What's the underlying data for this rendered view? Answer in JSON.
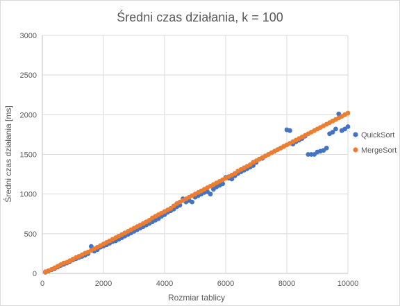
{
  "chart_data": {
    "type": "scatter",
    "title": "Średni czas działania, k = 100",
    "xlabel": "Rozmiar tablicy",
    "ylabel": "Średni czas działania [ms]",
    "xlim": [
      0,
      10000
    ],
    "ylim": [
      0,
      3000
    ],
    "x_ticks": [
      0,
      2000,
      4000,
      6000,
      8000,
      10000
    ],
    "y_ticks": [
      0,
      500,
      1000,
      1500,
      2000,
      2500,
      3000
    ],
    "grid": true,
    "legend_position": "right",
    "series": [
      {
        "name": "QuickSort",
        "color": "#4472c4",
        "x": [
          100,
          200,
          300,
          400,
          500,
          600,
          700,
          800,
          900,
          1000,
          1100,
          1200,
          1300,
          1400,
          1500,
          1600,
          1700,
          1800,
          1900,
          2000,
          2100,
          2200,
          2300,
          2400,
          2500,
          2600,
          2700,
          2800,
          2900,
          3000,
          3100,
          3200,
          3300,
          3400,
          3500,
          3600,
          3700,
          3800,
          3900,
          4000,
          4100,
          4200,
          4300,
          4400,
          4500,
          4600,
          4700,
          4800,
          4900,
          5000,
          5100,
          5200,
          5300,
          5400,
          5500,
          5600,
          5700,
          5800,
          5900,
          6000,
          6100,
          6200,
          6300,
          6400,
          6500,
          6600,
          6700,
          6800,
          6900,
          7000,
          7100,
          7200,
          7300,
          7400,
          7500,
          7600,
          7700,
          7800,
          7900,
          8000,
          8100,
          8200,
          8300,
          8400,
          8500,
          8600,
          8700,
          8800,
          8900,
          9000,
          9100,
          9200,
          9300,
          9400,
          9500,
          9600,
          9700,
          9800,
          9900,
          10000
        ],
        "values": [
          15,
          30,
          45,
          60,
          80,
          100,
          115,
          130,
          150,
          170,
          185,
          200,
          215,
          230,
          250,
          340,
          280,
          300,
          330,
          345,
          360,
          380,
          400,
          410,
          430,
          450,
          470,
          490,
          510,
          530,
          550,
          570,
          590,
          610,
          630,
          650,
          670,
          690,
          720,
          740,
          770,
          790,
          810,
          840,
          860,
          940,
          900,
          920,
          900,
          960,
          980,
          1000,
          1020,
          1030,
          1000,
          1060,
          1090,
          1110,
          1130,
          1210,
          1200,
          1190,
          1230,
          1260,
          1280,
          1300,
          1320,
          1340,
          1360,
          1400,
          1440,
          1450,
          1480,
          1500,
          1520,
          1540,
          1560,
          1580,
          1600,
          1810,
          1800,
          1630,
          1660,
          1680,
          1700,
          1730,
          1500,
          1500,
          1500,
          1530,
          1540,
          1550,
          1580,
          1760,
          1780,
          1820,
          2010,
          1800,
          1820,
          1850
        ]
      },
      {
        "name": "MergeSort",
        "color": "#ed7d31",
        "x": [
          100,
          200,
          300,
          400,
          500,
          600,
          700,
          800,
          900,
          1000,
          1100,
          1200,
          1300,
          1400,
          1500,
          1600,
          1700,
          1800,
          1900,
          2000,
          2100,
          2200,
          2300,
          2400,
          2500,
          2600,
          2700,
          2800,
          2900,
          3000,
          3100,
          3200,
          3300,
          3400,
          3500,
          3600,
          3700,
          3800,
          3900,
          4000,
          4100,
          4200,
          4300,
          4400,
          4500,
          4600,
          4700,
          4800,
          4900,
          5000,
          5100,
          5200,
          5300,
          5400,
          5500,
          5600,
          5700,
          5800,
          5900,
          6000,
          6100,
          6200,
          6300,
          6400,
          6500,
          6600,
          6700,
          6800,
          6900,
          7000,
          7100,
          7200,
          7300,
          7400,
          7500,
          7600,
          7700,
          7800,
          7900,
          8000,
          8100,
          8200,
          8300,
          8400,
          8500,
          8600,
          8700,
          8800,
          8900,
          9000,
          9100,
          9200,
          9300,
          9400,
          9500,
          9600,
          9700,
          9800,
          9900,
          10000
        ],
        "values": [
          20,
          35,
          50,
          70,
          90,
          110,
          130,
          140,
          160,
          180,
          200,
          215,
          235,
          255,
          270,
          290,
          310,
          330,
          350,
          370,
          390,
          410,
          430,
          450,
          470,
          490,
          510,
          530,
          550,
          570,
          590,
          610,
          630,
          650,
          670,
          700,
          720,
          740,
          760,
          780,
          800,
          820,
          850,
          880,
          900,
          920,
          940,
          960,
          980,
          1000,
          1020,
          1040,
          1060,
          1080,
          1100,
          1120,
          1140,
          1160,
          1180,
          1200,
          1220,
          1240,
          1260,
          1290,
          1310,
          1330,
          1350,
          1370,
          1400,
          1420,
          1440,
          1460,
          1480,
          1500,
          1520,
          1540,
          1560,
          1580,
          1600,
          1620,
          1640,
          1660,
          1680,
          1700,
          1720,
          1740,
          1760,
          1780,
          1800,
          1820,
          1840,
          1860,
          1880,
          1900,
          1920,
          1940,
          1960,
          1980,
          2000,
          2020
        ]
      }
    ]
  }
}
